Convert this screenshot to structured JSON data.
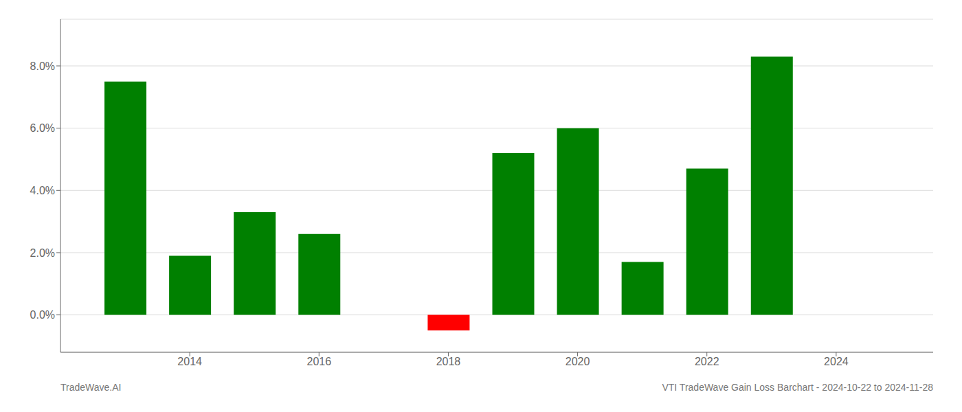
{
  "chart_data": {
    "type": "bar",
    "title": "VTI TradeWave Gain Loss Barchart - 2024-10-22 to 2024-11-28",
    "annotations": [
      "TradeWave.AI"
    ],
    "x": [
      2013,
      2014,
      2015,
      2016,
      2018,
      2019,
      2020,
      2021,
      2022,
      2023
    ],
    "values": [
      0.075,
      0.019,
      0.033,
      0.026,
      -0.005,
      0.052,
      0.06,
      0.017,
      0.047,
      0.083
    ],
    "colors": [
      "#008000",
      "#008000",
      "#008000",
      "#008000",
      "#ff0000",
      "#008000",
      "#008000",
      "#008000",
      "#008000",
      "#008000"
    ],
    "xlim": [
      2012.0,
      2025.5
    ],
    "xticks": [
      2014,
      2016,
      2018,
      2020,
      2022,
      2024
    ],
    "ylim": [
      -0.012,
      0.095
    ],
    "yticks": [
      {
        "value": 0.0,
        "label": "0.0%"
      },
      {
        "value": 0.02,
        "label": "2.0%"
      },
      {
        "value": 0.04,
        "label": "4.0%"
      },
      {
        "value": 0.06,
        "label": "6.0%"
      },
      {
        "value": 0.08,
        "label": "8.0%"
      }
    ],
    "grid": true
  }
}
